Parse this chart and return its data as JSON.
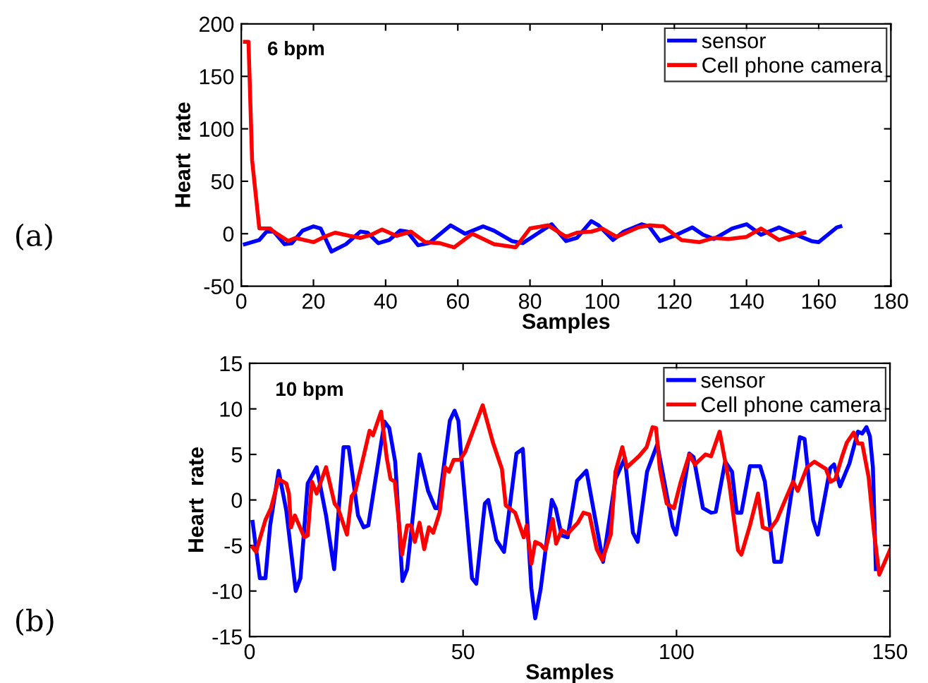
{
  "chart_data": [
    {
      "type": "line",
      "xlabel": "Samples",
      "ylabel": "Heart  rate",
      "annotations": [
        "6 bpm",
        "(a)"
      ],
      "xlim": [
        0,
        180
      ],
      "ylim": [
        -50,
        200
      ],
      "xticks": [
        0,
        20,
        40,
        60,
        80,
        100,
        120,
        140,
        160,
        180
      ],
      "yticks": [
        -50,
        0,
        50,
        100,
        150,
        200
      ],
      "grid": false,
      "legend": "top right",
      "line_style": "solid",
      "marker": "none",
      "series": [
        {
          "name": "sensor",
          "color": "#0000ff",
          "x": [
            1,
            3,
            5,
            7,
            9,
            12,
            14,
            17,
            20,
            22,
            25,
            29,
            33,
            35,
            38,
            41,
            44,
            46,
            49,
            52,
            58,
            62,
            67,
            70,
            75,
            78,
            82,
            86,
            90,
            93,
            97,
            99,
            103,
            106,
            111,
            113,
            116,
            120,
            125,
            128,
            131,
            136,
            140,
            144,
            149,
            153,
            158,
            160,
            165,
            166
          ],
          "values": [
            -10,
            -8,
            -6,
            2,
            2,
            -10,
            -9,
            3,
            7,
            5,
            -17,
            -10,
            2,
            1,
            -9,
            -6,
            3,
            2,
            -11,
            -9,
            8,
            0,
            7,
            3,
            -7,
            -9,
            0,
            9,
            -7,
            -4,
            12,
            8,
            -6,
            2,
            9,
            7,
            -7,
            -2,
            6,
            -1,
            -5,
            5,
            9,
            -1,
            6,
            0,
            -7,
            -8,
            6,
            7
          ]
        },
        {
          "name": "Cell phone camera",
          "color": "#ff0000",
          "x": [
            1,
            2,
            3,
            5,
            8,
            9,
            13,
            15,
            20,
            23,
            26,
            30,
            33,
            36,
            39,
            43,
            47,
            51,
            55,
            59,
            64,
            70,
            76,
            80,
            85,
            90,
            93,
            97,
            100,
            104,
            110,
            113,
            117,
            122,
            127,
            131,
            135,
            140,
            144,
            149,
            153,
            156
          ],
          "values": [
            183,
            183,
            70,
            5,
            5,
            2,
            -7,
            -4,
            -8,
            -3,
            1,
            -2,
            -4,
            -1,
            4,
            -2,
            2,
            -8,
            -9,
            -13,
            0,
            -10,
            -13,
            5,
            8,
            -3,
            1,
            2,
            5,
            -3,
            6,
            8,
            7,
            -6,
            -8,
            -4,
            -5,
            -3,
            5,
            -6,
            -2,
            1
          ]
        }
      ]
    },
    {
      "type": "line",
      "xlabel": "Samples",
      "ylabel": "Heart  rate",
      "annotations": [
        "10 bpm",
        "(b)"
      ],
      "xlim": [
        0,
        150
      ],
      "ylim": [
        -15,
        15
      ],
      "xticks": [
        0,
        50,
        100,
        150
      ],
      "yticks": [
        -15,
        -10,
        -5,
        0,
        5,
        10,
        15
      ],
      "grid": false,
      "legend": "top right",
      "line_style": "solid",
      "marker": "none",
      "series": [
        {
          "name": "sensor",
          "color": "#0000ff",
          "x": [
            0.7,
            2.4,
            3.7,
            4.8,
            6.8,
            8.6,
            10.8,
            11.9,
            13.6,
            15.7,
            17.9,
            19.8,
            22,
            23.2,
            25.4,
            26.7,
            27.8,
            31.6,
            32.7,
            34.1,
            35.8,
            36.9,
            39.8,
            41.8,
            43.5,
            44.2,
            46.9,
            48,
            48.9,
            49.6,
            52.1,
            53.1,
            55.1,
            55.9,
            57.8,
            59.6,
            62.5,
            64,
            66,
            66.9,
            68.2,
            70.8,
            71.7,
            73.1,
            74.5,
            76.7,
            78.9,
            82.8,
            85.7,
            87.9,
            89.8,
            90.9,
            93.1,
            95.5,
            99.1,
            99.9,
            103,
            104,
            106.2,
            108.1,
            109.2,
            111.4,
            113,
            114.1,
            115.2,
            117.2,
            119.6,
            120.7,
            122.9,
            124.5,
            128.9,
            130,
            132,
            133.1,
            136,
            136.9,
            138.3,
            140.5,
            142.5,
            143.5,
            144.5,
            145.3,
            146,
            146.7
          ],
          "values": [
            -2.4,
            -8.6,
            -8.6,
            -2.8,
            3.2,
            -1.2,
            -10,
            -8.6,
            1.8,
            3.6,
            -1.7,
            -7.6,
            5.8,
            5.8,
            -1.7,
            -3,
            -2.8,
            8.6,
            7.9,
            4.2,
            -8.9,
            -7.6,
            5,
            1,
            -0.9,
            -0.9,
            8.7,
            9.8,
            8.7,
            4.7,
            -8.6,
            -9.2,
            -0.4,
            0,
            -4.4,
            -5.7,
            5.1,
            5.6,
            -9.7,
            -13,
            -9.7,
            0,
            -0.9,
            -3.9,
            -4.1,
            2.1,
            3.2,
            -6.8,
            2.3,
            4.6,
            -3.6,
            -4.6,
            3.1,
            6.1,
            -2.9,
            -3.8,
            5.1,
            4.7,
            -0.9,
            -1.4,
            -1.3,
            4.2,
            3.1,
            -1.4,
            -1.4,
            3.7,
            3.7,
            2,
            -6.8,
            -6.8,
            6.9,
            6.7,
            -2.2,
            -3.8,
            3.5,
            3.9,
            1.5,
            4,
            7.5,
            7.3,
            8,
            7,
            3.6,
            -7.6
          ]
        },
        {
          "name": "Cell phone camera",
          "color": "#ff0000",
          "x": [
            0.7,
            1.5,
            3.7,
            5,
            6.8,
            8.6,
            9.2,
            9.7,
            10.6,
            12.8,
            13.6,
            14.6,
            15.7,
            17.9,
            19.9,
            20.7,
            22.8,
            23.9,
            24.8,
            28.1,
            28.9,
            30.8,
            32.1,
            33,
            34,
            35.7,
            36.9,
            37.8,
            38.7,
            39.8,
            40.9,
            42,
            43,
            44.5,
            45.8,
            46.7,
            47.8,
            49.3,
            50.5,
            54.6,
            57,
            59.1,
            60,
            62.2,
            64.2,
            64.9,
            66,
            66.9,
            68.2,
            69.3,
            71,
            71.8,
            73.1,
            74.5,
            76.9,
            78.2,
            79.6,
            81.3,
            82.6,
            84.6,
            85.7,
            87.3,
            88.4,
            91.2,
            93,
            94.4,
            95.2,
            96.1,
            97.7,
            99.4,
            101,
            103,
            104.3,
            106.8,
            108.1,
            110.1,
            112.3,
            114.4,
            115.2,
            117.2,
            119.1,
            120.2,
            121.8,
            123.5,
            125.1,
            127.3,
            128.4,
            130.6,
            132.3,
            135,
            136.1,
            137.2,
            138.8,
            139.9,
            141.5,
            142.5,
            143.5,
            145,
            146.3,
            147.5,
            150
          ],
          "values": [
            -5.2,
            -5.7,
            -2.2,
            -0.9,
            2.3,
            1.8,
            0.7,
            -3,
            -1.7,
            -4.1,
            -3.9,
            2,
            0.7,
            3.6,
            -0.4,
            -0.9,
            -3.8,
            0.4,
            1,
            7.6,
            7.1,
            9.7,
            4.7,
            2.3,
            2,
            -6,
            -2.8,
            -2.8,
            -4.6,
            -2.5,
            -5.4,
            -3,
            -3.6,
            -1.4,
            3.6,
            3.1,
            4.4,
            4.4,
            5.3,
            10.4,
            6.3,
            3.4,
            -0.6,
            -1.4,
            -4.1,
            -2.8,
            -7,
            -4.6,
            -4.9,
            -5.5,
            -2.1,
            -4.8,
            -3.3,
            -3.7,
            -2.5,
            -1.4,
            -1.6,
            -5.4,
            -6.6,
            -3.8,
            3.1,
            5.8,
            3.6,
            4.8,
            5.8,
            8,
            7.9,
            3.4,
            -0.4,
            -0.9,
            2,
            5,
            3.9,
            5,
            4.8,
            7.5,
            2,
            -5.5,
            -6,
            -2.8,
            0.7,
            -3,
            -3.3,
            -2.2,
            -0.4,
            2,
            1,
            3.6,
            4.2,
            3.4,
            2,
            2.3,
            4.8,
            6.3,
            7.4,
            6.2,
            6.2,
            2.5,
            -3.7,
            -8.2,
            -5.5
          ]
        }
      ]
    }
  ]
}
